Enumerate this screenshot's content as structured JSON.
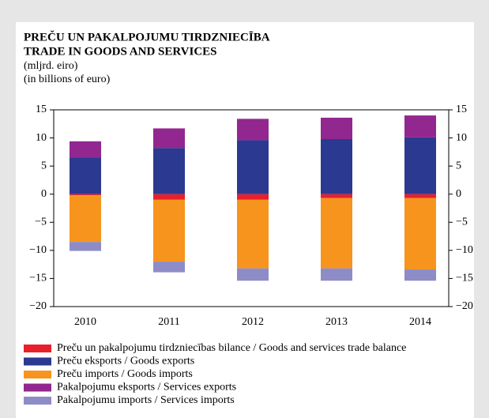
{
  "chart_data": {
    "type": "stacked_bar",
    "title": "PREČU UN PAKALPOJUMU TIRDZNIECĪBA",
    "subtitle": "TRADE IN GOODS AND SERVICES",
    "unit_lv": "(mljrd. eiro)",
    "unit_en": "(in billions of euro)",
    "categories": [
      "2010",
      "2011",
      "2012",
      "2013",
      "2014"
    ],
    "series": [
      {
        "name": "Preču un pakalpojumu tirdzniecības bilance / Goods and services trade balance",
        "color": "#e8202a",
        "values": [
          -0.2,
          -1.0,
          -1.0,
          -0.7,
          -0.7
        ]
      },
      {
        "name": "Preču eksports / Goods exports",
        "color": "#2b3990",
        "values": [
          6.5,
          8.2,
          9.6,
          9.8,
          10.1
        ]
      },
      {
        "name": "Preču imports / Goods imports",
        "color": "#f7941d",
        "values": [
          -8.3,
          -11.0,
          -12.2,
          -12.5,
          -12.7
        ]
      },
      {
        "name": "Pakalpojumu eksports / Services exports",
        "color": "#92278f",
        "values": [
          2.9,
          3.5,
          3.8,
          3.8,
          3.9
        ]
      },
      {
        "name": "Pakalpojumu imports / Services imports",
        "color": "#8e8cc7",
        "values": [
          -1.6,
          -1.9,
          -2.2,
          -2.2,
          -2.0
        ]
      }
    ],
    "ylim": [
      -20,
      15
    ],
    "yticks": [
      15,
      10,
      5,
      0,
      {
        "value": -5,
        "label": "−5"
      },
      {
        "value": -10,
        "label": "−10"
      },
      {
        "value": -15,
        "label": "−15"
      },
      {
        "value": -20,
        "label": "−20"
      }
    ]
  }
}
